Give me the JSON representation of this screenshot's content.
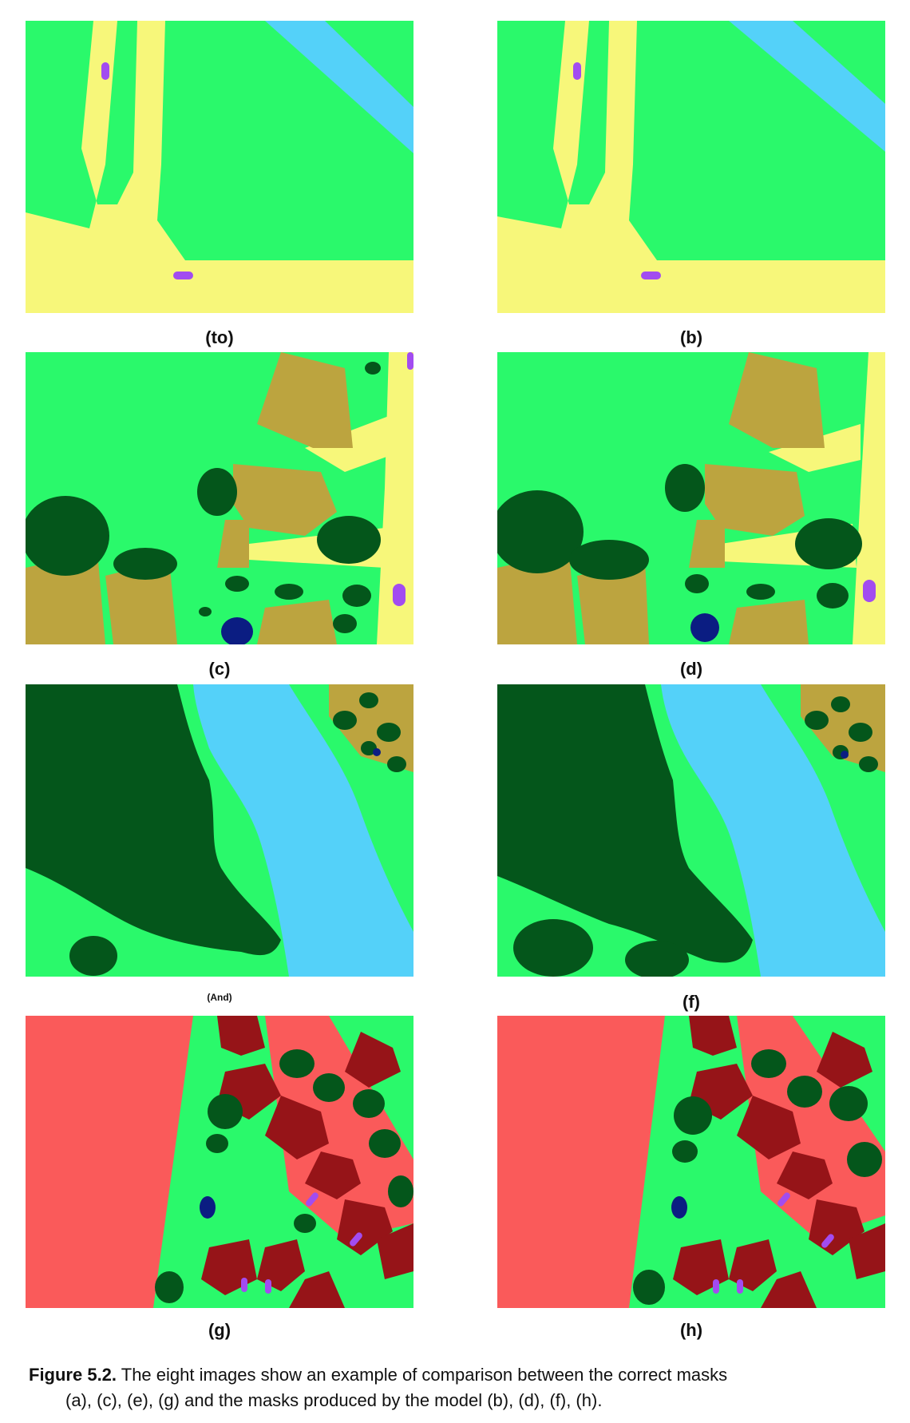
{
  "panels": [
    {
      "label": "(to)"
    },
    {
      "label": "(b)"
    },
    {
      "label": "(c)"
    },
    {
      "label": "(d)"
    },
    {
      "label": "(And)"
    },
    {
      "label": "(f)"
    },
    {
      "label": "(g)"
    },
    {
      "label": "(h)"
    }
  ],
  "caption": {
    "figure_label": "Figure 5.2.",
    "line1": " The eight images show an example of comparison between the correct masks",
    "line2": "(a), (c), (e), (g) and the masks produced by the model (b), (d), (f), (h)."
  },
  "colors": {
    "grass": "#2AF96B",
    "road": "#F7F77A",
    "water": "#54D1F9",
    "car": "#A24CF0",
    "building": "#BCA43F",
    "tree": "#04561B",
    "pool": "#0B1D82",
    "red_area": "#FA5A5A",
    "roof": "#961418"
  }
}
